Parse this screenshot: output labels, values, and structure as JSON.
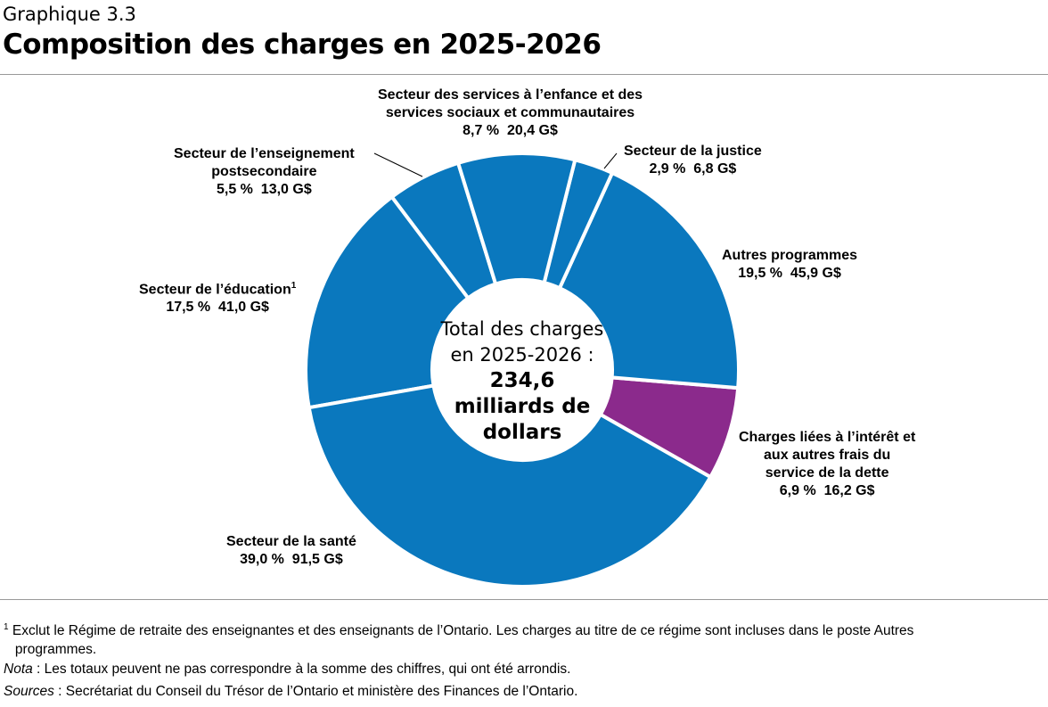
{
  "header": {
    "label": "Graphique 3.3",
    "title": "Composition des charges en 2025-2026"
  },
  "chart_data": {
    "type": "pie",
    "donut": true,
    "colors": {
      "default": "#0a78be",
      "highlight": "#8b2a8c"
    },
    "slices": [
      {
        "name": "Secteur des services à l’enfance et des services sociaux et communautaires",
        "line1": "Secteur des services à l’enfance et des",
        "line2": "services sociaux et communautaires",
        "percent": 8.7,
        "value": 20.4,
        "pct_label": "8,7 %",
        "val_label": "20,4 G$",
        "color": "#0a78be"
      },
      {
        "name": "Secteur de la justice",
        "line1": "Secteur de la justice",
        "percent": 2.9,
        "value": 6.8,
        "pct_label": "2,9 %",
        "val_label": "6,8 G$",
        "color": "#0a78be"
      },
      {
        "name": "Autres programmes",
        "line1": "Autres programmes",
        "percent": 19.5,
        "value": 45.9,
        "pct_label": "19,5 %",
        "val_label": "45,9 G$",
        "color": "#0a78be"
      },
      {
        "name": "Charges liées à l’intérêt et aux autres frais du service de la dette",
        "line1": "Charges liées à l’intérêt et",
        "line2": "aux autres frais du",
        "line3": "service de la dette",
        "percent": 6.9,
        "value": 16.2,
        "pct_label": "6,9 %",
        "val_label": "16,2 G$",
        "color": "#8b2a8c"
      },
      {
        "name": "Secteur de la santé",
        "line1": "Secteur de la santé",
        "percent": 39.0,
        "value": 91.5,
        "pct_label": "39,0 %",
        "val_label": "91,5 G$",
        "color": "#0a78be"
      },
      {
        "name": "Secteur de l’éducation",
        "line1": "Secteur de l’éducation",
        "sup": "1",
        "percent": 17.5,
        "value": 41.0,
        "pct_label": "17,5 %",
        "val_label": "41,0 G$",
        "color": "#0a78be"
      },
      {
        "name": "Secteur de l’enseignement postsecondaire",
        "line1": "Secteur de l’enseignement",
        "line2": "postsecondaire",
        "percent": 5.5,
        "value": 13.0,
        "pct_label": "5,5 %",
        "val_label": "13,0 G$",
        "color": "#0a78be"
      }
    ],
    "center": {
      "line1": "Total des charges",
      "line2": "en 2025-2026 :",
      "value": "234,6",
      "line4": "milliards de",
      "line5": "dollars"
    }
  },
  "footnotes": {
    "f1_mark": "1",
    "f1": "Exclut le Régime de retraite des enseignantes et des enseignants de l’Ontario. Les charges au titre de ce régime sont incluses dans le poste Autres",
    "f1b": "programmes.",
    "nota_label": "Nota",
    "nota": " : Les totaux peuvent ne pas correspondre à la somme des chiffres, qui ont été arrondis.",
    "sources_label": "Sources",
    "sources": " : Secrétariat du Conseil du Trésor de l’Ontario et ministère des Finances de l’Ontario."
  }
}
